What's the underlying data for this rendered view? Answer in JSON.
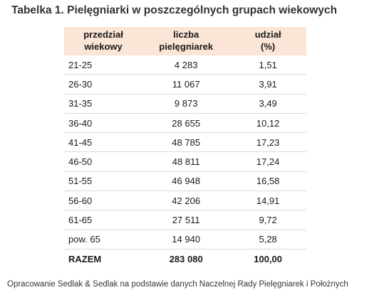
{
  "title": "Tabelka 1. Pielęgniarki w poszczególnych grupach wiekowych",
  "table": {
    "headers": [
      {
        "line1": "przedział",
        "line2": "wiekowy"
      },
      {
        "line1": "liczba",
        "line2": "pielęgniarek"
      },
      {
        "line1": "udział",
        "line2": "(%)"
      }
    ],
    "rows": [
      {
        "age": "21-25",
        "count": "4 283",
        "share": "1,51"
      },
      {
        "age": "26-30",
        "count": "11 067",
        "share": "3,91"
      },
      {
        "age": "31-35",
        "count": "9 873",
        "share": "3,49"
      },
      {
        "age": "36-40",
        "count": "28 655",
        "share": "10,12"
      },
      {
        "age": "41-45",
        "count": "48 785",
        "share": "17,23"
      },
      {
        "age": "46-50",
        "count": "48 811",
        "share": "17,24"
      },
      {
        "age": "51-55",
        "count": "46 948",
        "share": "16,58"
      },
      {
        "age": "56-60",
        "count": "42 206",
        "share": "14,91"
      },
      {
        "age": "61-65",
        "count": "27 511",
        "share": "9,72"
      },
      {
        "age": "pow. 65",
        "count": "14 940",
        "share": "5,28"
      }
    ],
    "total": {
      "age": "RAZEM",
      "count": "283 080",
      "share": "100,00"
    }
  },
  "source": "Opracowanie Sedlak & Sedlak na podstawie danych Naczelnej Rady Pielęgniarek i Położnych"
}
